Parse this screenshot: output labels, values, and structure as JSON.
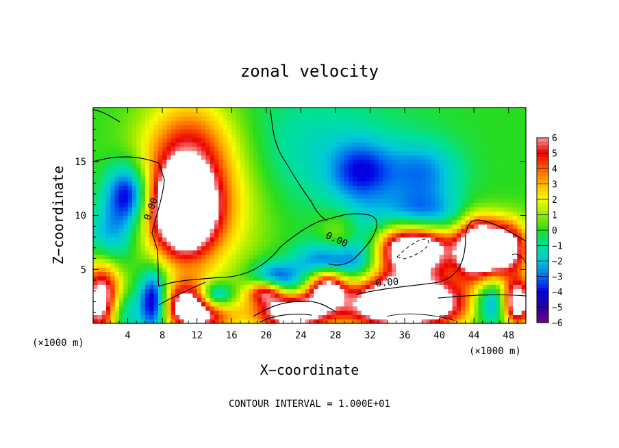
{
  "chart_data": {
    "type": "heatmap",
    "title": "zonal velocity",
    "xlabel": "X−coordinate",
    "ylabel": "Z−coordinate",
    "x_unit_left": "(×1000 m)",
    "x_unit_right": "(×1000 m)",
    "footnote": "CONTOUR INTERVAL =  1.000E+01",
    "xlim": [
      0,
      50
    ],
    "ylim": [
      0,
      20
    ],
    "x_ticks": [
      4,
      8,
      12,
      16,
      20,
      24,
      28,
      32,
      36,
      40,
      44,
      48
    ],
    "y_ticks": [
      5,
      10,
      15
    ],
    "colorbar": {
      "ticks": [
        6,
        5,
        4,
        3,
        2,
        1,
        0,
        -1,
        -2,
        -3,
        -4,
        -5,
        -6
      ],
      "range": [
        -6,
        6
      ],
      "saturated_above_range": "#ffffff"
    },
    "field_features": [
      {
        "x": 10.5,
        "y": 10.5,
        "value": 9,
        "sx": 2.5,
        "sy": 2.8
      },
      {
        "x": 12,
        "y": 12,
        "value": 4,
        "sx": 5,
        "sy": 5
      },
      {
        "x": 11,
        "y": 17,
        "value": 2.5,
        "sx": 3.5,
        "sy": 3
      },
      {
        "x": 4,
        "y": 12,
        "value": -5,
        "sx": 1.8,
        "sy": 2
      },
      {
        "x": 2,
        "y": 8,
        "value": -2.5,
        "sx": 2,
        "sy": 2
      },
      {
        "x": 1,
        "y": 2,
        "value": 8,
        "sx": 1.6,
        "sy": 2.5
      },
      {
        "x": 3,
        "y": 1,
        "value": -3,
        "sx": 1.5,
        "sy": 1.5
      },
      {
        "x": 7,
        "y": 2,
        "value": -6,
        "sx": 1.2,
        "sy": 2
      },
      {
        "x": 12,
        "y": 1.5,
        "value": 9,
        "sx": 2.8,
        "sy": 1.6
      },
      {
        "x": 14,
        "y": 2.5,
        "value": -7,
        "sx": 1.6,
        "sy": 1
      },
      {
        "x": 20,
        "y": 3,
        "value": 6,
        "sx": 1.5,
        "sy": 0.8
      },
      {
        "x": 21,
        "y": 4,
        "value": -4,
        "sx": 2,
        "sy": 1.2
      },
      {
        "x": 23,
        "y": 1,
        "value": 8,
        "sx": 3,
        "sy": 1.2
      },
      {
        "x": 27,
        "y": 3.5,
        "value": 7,
        "sx": 1.6,
        "sy": 1.2
      },
      {
        "x": 27,
        "y": 5.5,
        "value": -4,
        "sx": 2.5,
        "sy": 1.5
      },
      {
        "x": 29,
        "y": 8,
        "value": 2.5,
        "sx": 2,
        "sy": 1.5
      },
      {
        "x": 31,
        "y": 7,
        "value": -4,
        "sx": 2,
        "sy": 2
      },
      {
        "x": 37,
        "y": 7,
        "value": 9,
        "sx": 3.5,
        "sy": 1.6
      },
      {
        "x": 38,
        "y": 10,
        "value": -3,
        "sx": 3.5,
        "sy": 1.5
      },
      {
        "x": 36,
        "y": 1.5,
        "value": 9,
        "sx": 5,
        "sy": 1.5
      },
      {
        "x": 36,
        "y": 3.5,
        "value": 4,
        "sx": 5,
        "sy": 1.5
      },
      {
        "x": 31,
        "y": 14,
        "value": -3,
        "sx": 2.5,
        "sy": 2
      },
      {
        "x": 38,
        "y": 14,
        "value": -2.5,
        "sx": 3,
        "sy": 2
      },
      {
        "x": 44,
        "y": 7,
        "value": 6,
        "sx": 1.5,
        "sy": 2
      },
      {
        "x": 47,
        "y": 7,
        "value": 9,
        "sx": 2.2,
        "sy": 1.8
      },
      {
        "x": 46,
        "y": 2,
        "value": -4,
        "sx": 1.5,
        "sy": 1.5
      },
      {
        "x": 49,
        "y": 2,
        "value": 8,
        "sx": 1.2,
        "sy": 1.5
      },
      {
        "x": 25,
        "y": 16,
        "value": -1.5,
        "sx": 8,
        "sy": 4
      }
    ],
    "contour_labels": [
      {
        "text": "0.00",
        "x": 7,
        "y": 10.5,
        "angle": -70
      },
      {
        "text": "0.00",
        "x": 28,
        "y": 7.5,
        "angle": 25
      },
      {
        "text": "0.00",
        "x": 34,
        "y": 3.5,
        "angle": -5
      }
    ]
  }
}
